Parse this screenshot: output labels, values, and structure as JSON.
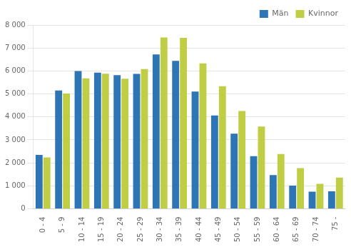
{
  "chart_data": {
    "type": "bar",
    "categories": [
      "0 - 4",
      "5 - 9",
      "10 - 14",
      "15 - 19",
      "20 - 24",
      "25 - 29",
      "30 - 34",
      "35 - 39",
      "40 - 44",
      "45 - 49",
      "50 - 54",
      "55 - 59",
      "60 - 64",
      "65 - 69",
      "70 - 74",
      "75 -"
    ],
    "series": [
      {
        "name": "Män",
        "color": "#2E75B6",
        "values": [
          2350,
          5150,
          6000,
          5930,
          5820,
          5870,
          6720,
          6440,
          5100,
          4060,
          3270,
          2290,
          1470,
          1010,
          750,
          760
        ]
      },
      {
        "name": "Kvinnor",
        "color": "#BFCE45",
        "values": [
          2240,
          5020,
          5680,
          5880,
          5660,
          6080,
          7460,
          7440,
          6330,
          5340,
          4260,
          3580,
          2390,
          1770,
          1090,
          1360
        ]
      }
    ],
    "ylim": [
      0,
      8000
    ],
    "yticks": [
      0,
      {
        "value": 1000,
        "label": "1 000"
      },
      {
        "value": 2000,
        "label": "2 000"
      },
      {
        "value": 3000,
        "label": "3 000"
      },
      {
        "value": 4000,
        "label": "4 000"
      },
      {
        "value": 5000,
        "label": "5 000"
      },
      {
        "value": 6000,
        "label": "6 000"
      },
      {
        "value": 7000,
        "label": "7 000"
      },
      {
        "value": 8000,
        "label": "8 000"
      }
    ],
    "grid": true,
    "legend": "upper right"
  }
}
